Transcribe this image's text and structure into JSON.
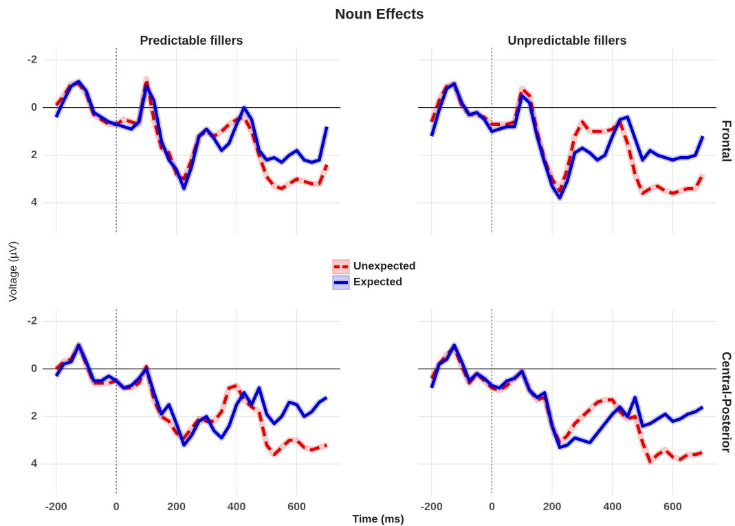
{
  "title": "Noun Effects",
  "x_label": "Time (ms)",
  "y_label": "Voltage (µV)",
  "facets": {
    "columns": [
      "Predictable fillers",
      "Unpredictable fillers"
    ],
    "rows": [
      "Frontal",
      "Central-Posterior"
    ]
  },
  "legend_position": "center",
  "chart_data": [
    {
      "type": "line",
      "column": 0,
      "row": 0,
      "x": [
        -200,
        -175,
        -150,
        -125,
        -100,
        -75,
        -50,
        -25,
        0,
        25,
        50,
        75,
        100,
        125,
        150,
        175,
        200,
        225,
        250,
        275,
        300,
        325,
        350,
        375,
        400,
        425,
        450,
        475,
        500,
        525,
        550,
        575,
        600,
        625,
        650,
        675,
        700
      ],
      "xlim": [
        -245,
        745
      ],
      "ylim": [
        5.3,
        -2.5
      ],
      "xticks": [
        -200,
        0,
        200,
        400,
        600
      ],
      "yticks": [
        -2,
        0,
        2,
        4
      ],
      "grid": true,
      "hline": 0,
      "vline": 0,
      "series": [
        {
          "name": "Unexpected",
          "color": "#e00000",
          "dash": true,
          "values": [
            -0.1,
            -0.5,
            -1.0,
            -1.0,
            -0.6,
            0.3,
            0.5,
            0.7,
            0.7,
            0.5,
            0.6,
            0.7,
            -1.2,
            0.5,
            1.7,
            1.9,
            2.8,
            3.0,
            2.2,
            1.2,
            1.0,
            1.2,
            1.0,
            0.7,
            0.5,
            0.4,
            1.0,
            2.0,
            2.9,
            3.3,
            3.4,
            3.2,
            3.0,
            3.1,
            3.2,
            3.2,
            2.4
          ]
        },
        {
          "name": "Expected",
          "color": "#0000cc",
          "dash": false,
          "values": [
            0.4,
            -0.3,
            -0.9,
            -1.1,
            -0.7,
            0.2,
            0.4,
            0.6,
            0.7,
            0.8,
            0.9,
            0.6,
            -0.9,
            -0.3,
            1.4,
            2.2,
            2.6,
            3.4,
            2.5,
            1.2,
            0.9,
            1.3,
            1.8,
            1.5,
            0.7,
            0.0,
            0.5,
            1.8,
            2.2,
            2.1,
            2.3,
            2.0,
            1.8,
            2.2,
            2.3,
            2.2,
            0.8
          ]
        }
      ]
    },
    {
      "type": "line",
      "column": 1,
      "row": 0,
      "x": [
        -200,
        -175,
        -150,
        -125,
        -100,
        -75,
        -50,
        -25,
        0,
        25,
        50,
        75,
        100,
        125,
        150,
        175,
        200,
        225,
        250,
        275,
        300,
        325,
        350,
        375,
        400,
        425,
        450,
        475,
        500,
        525,
        550,
        575,
        600,
        625,
        650,
        675,
        700
      ],
      "xlim": [
        -245,
        745
      ],
      "ylim": [
        5.3,
        -2.5
      ],
      "xticks": [
        -200,
        0,
        200,
        400,
        600
      ],
      "yticks": [
        -2,
        0,
        2,
        4
      ],
      "grid": true,
      "hline": 0,
      "vline": 0,
      "series": [
        {
          "name": "Unexpected",
          "color": "#e00000",
          "dash": true,
          "values": [
            0.6,
            -0.3,
            -0.9,
            -1.0,
            -0.1,
            0.3,
            0.3,
            0.4,
            0.7,
            0.7,
            0.7,
            0.6,
            -0.8,
            -0.5,
            1.0,
            2.2,
            3.0,
            3.5,
            2.6,
            1.2,
            0.6,
            1.0,
            1.0,
            1.0,
            0.9,
            0.6,
            1.5,
            2.8,
            3.6,
            3.4,
            3.3,
            3.5,
            3.6,
            3.5,
            3.4,
            3.4,
            2.8
          ]
        },
        {
          "name": "Expected",
          "color": "#0000cc",
          "dash": false,
          "values": [
            1.2,
            0.1,
            -0.8,
            -1.0,
            -0.2,
            0.3,
            0.2,
            0.5,
            1.0,
            0.9,
            0.8,
            0.8,
            -0.5,
            -0.2,
            1.2,
            2.3,
            3.3,
            3.8,
            3.1,
            1.9,
            1.7,
            1.9,
            2.2,
            2.0,
            1.2,
            0.5,
            0.4,
            1.3,
            2.2,
            1.8,
            2.0,
            2.1,
            2.2,
            2.1,
            2.1,
            2.0,
            1.2
          ]
        }
      ]
    },
    {
      "type": "line",
      "column": 0,
      "row": 1,
      "x": [
        -200,
        -175,
        -150,
        -125,
        -100,
        -75,
        -50,
        -25,
        0,
        25,
        50,
        75,
        100,
        125,
        150,
        175,
        200,
        225,
        250,
        275,
        300,
        325,
        350,
        375,
        400,
        425,
        450,
        475,
        500,
        525,
        550,
        575,
        600,
        625,
        650,
        675,
        700
      ],
      "xlim": [
        -245,
        745
      ],
      "ylim": [
        5.3,
        -2.5
      ],
      "xticks": [
        -200,
        0,
        200,
        400,
        600
      ],
      "yticks": [
        -2,
        0,
        2,
        4
      ],
      "grid": true,
      "hline": 0,
      "vline": 0,
      "series": [
        {
          "name": "Unexpected",
          "color": "#e00000",
          "dash": true,
          "values": [
            0.0,
            -0.3,
            -0.4,
            -1.0,
            -0.2,
            0.6,
            0.6,
            0.6,
            0.5,
            0.8,
            0.8,
            0.6,
            -0.1,
            1.3,
            2.0,
            2.2,
            2.7,
            2.9,
            2.5,
            2.1,
            2.2,
            2.2,
            1.8,
            0.8,
            0.7,
            1.3,
            1.6,
            1.8,
            3.2,
            3.6,
            3.3,
            3.0,
            3.0,
            3.3,
            3.4,
            3.3,
            3.2
          ]
        },
        {
          "name": "Expected",
          "color": "#0000cc",
          "dash": false,
          "values": [
            0.3,
            -0.2,
            -0.3,
            -1.0,
            -0.3,
            0.5,
            0.5,
            0.3,
            0.5,
            0.8,
            0.7,
            0.4,
            0.0,
            1.0,
            1.9,
            1.5,
            2.3,
            3.2,
            2.8,
            2.2,
            2.0,
            2.6,
            2.9,
            2.4,
            1.5,
            1.0,
            1.5,
            0.8,
            1.9,
            2.3,
            2.0,
            1.4,
            1.5,
            2.0,
            1.8,
            1.4,
            1.2
          ]
        }
      ]
    },
    {
      "type": "line",
      "column": 1,
      "row": 1,
      "x": [
        -200,
        -175,
        -150,
        -125,
        -100,
        -75,
        -50,
        -25,
        0,
        25,
        50,
        75,
        100,
        125,
        150,
        175,
        200,
        225,
        250,
        275,
        300,
        325,
        350,
        375,
        400,
        425,
        450,
        475,
        500,
        525,
        550,
        575,
        600,
        625,
        650,
        675,
        700
      ],
      "xlim": [
        -245,
        745
      ],
      "ylim": [
        5.3,
        -2.5
      ],
      "xticks": [
        -200,
        0,
        200,
        400,
        600
      ],
      "yticks": [
        -2,
        0,
        2,
        4
      ],
      "grid": true,
      "hline": 0,
      "vline": 0,
      "series": [
        {
          "name": "Unexpected",
          "color": "#e00000",
          "dash": true,
          "values": [
            0.4,
            -0.2,
            -0.6,
            -0.9,
            -0.1,
            0.6,
            0.2,
            0.5,
            0.8,
            0.9,
            0.7,
            0.4,
            0.1,
            0.9,
            1.3,
            1.2,
            2.4,
            3.1,
            2.8,
            2.3,
            2.0,
            1.7,
            1.4,
            1.3,
            1.3,
            1.8,
            2.1,
            2.0,
            3.1,
            3.9,
            3.6,
            3.4,
            3.7,
            3.8,
            3.6,
            3.6,
            3.5
          ]
        },
        {
          "name": "Expected",
          "color": "#0000cc",
          "dash": false,
          "values": [
            0.8,
            -0.2,
            -0.4,
            -1.0,
            -0.3,
            0.5,
            0.2,
            0.4,
            0.7,
            0.8,
            0.5,
            0.4,
            0.1,
            0.9,
            1.2,
            1.0,
            2.4,
            3.3,
            3.2,
            2.9,
            3.0,
            3.1,
            2.7,
            2.3,
            1.9,
            1.6,
            2.0,
            1.2,
            2.4,
            2.3,
            2.1,
            1.9,
            2.2,
            2.1,
            1.9,
            1.8,
            1.6
          ]
        }
      ]
    }
  ]
}
